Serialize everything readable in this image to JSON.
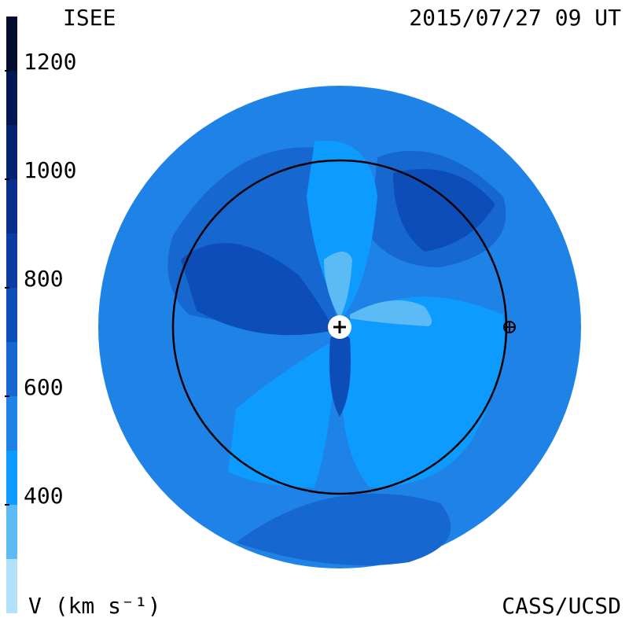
{
  "title": "ISEE",
  "timestamp": "2015/07/27 09 UT",
  "credit": "CASS/UCSD",
  "colorbar": {
    "label": "V (km s⁻¹)",
    "lim": [
      200,
      1300
    ],
    "ticks": [
      400,
      600,
      800,
      1000,
      1200
    ],
    "levels": [
      {
        "from": 200,
        "to": 300,
        "color": "#b3e0fb"
      },
      {
        "from": 300,
        "to": 400,
        "color": "#5cbaf5"
      },
      {
        "from": 400,
        "to": 500,
        "color": "#0d9bff"
      },
      {
        "from": 500,
        "to": 600,
        "color": "#1e82e6"
      },
      {
        "from": 600,
        "to": 700,
        "color": "#1767d0"
      },
      {
        "from": 700,
        "to": 800,
        "color": "#0c4db8"
      },
      {
        "from": 800,
        "to": 900,
        "color": "#0a3ca2"
      },
      {
        "from": 900,
        "to": 1000,
        "color": "#072e8a"
      },
      {
        "from": 1000,
        "to": 1100,
        "color": "#052270"
      },
      {
        "from": 1100,
        "to": 1200,
        "color": "#031755"
      },
      {
        "from": 1200,
        "to": 1300,
        "color": "#020c2e"
      }
    ]
  }
}
